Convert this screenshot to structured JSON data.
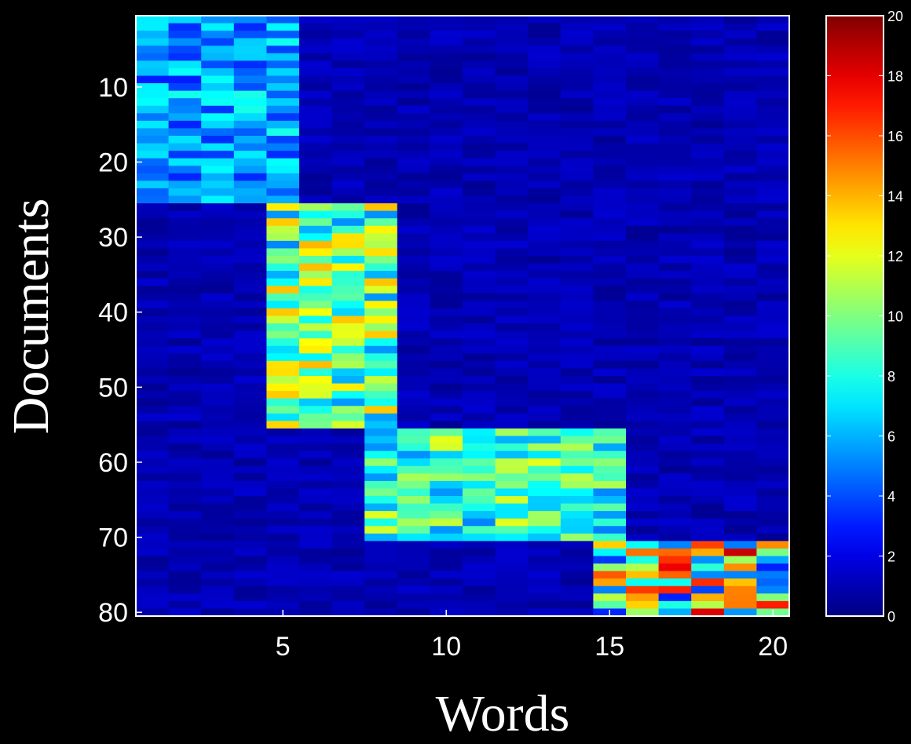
{
  "chart_data": {
    "type": "heatmap",
    "xlabel": "Words",
    "ylabel": "Documents",
    "x_range": [
      1,
      20
    ],
    "y_range": [
      1,
      80
    ],
    "x_ticks": [
      "5",
      "10",
      "15",
      "20"
    ],
    "y_ticks": [
      "10",
      "20",
      "30",
      "40",
      "50",
      "60",
      "70",
      "80"
    ],
    "colorbar": {
      "range": [
        0,
        20
      ],
      "ticks": [
        "0",
        "2",
        "4",
        "6",
        "8",
        "10",
        "12",
        "14",
        "16",
        "18",
        "20"
      ],
      "colormap": "jet"
    },
    "background_level": 1,
    "blocks": [
      {
        "documents": [
          1,
          25
        ],
        "words": [
          1,
          5
        ],
        "typical_value": 5,
        "range": [
          3,
          8
        ]
      },
      {
        "documents": [
          26,
          55
        ],
        "words": [
          5,
          8
        ],
        "typical_value": 9,
        "range": [
          5,
          14
        ]
      },
      {
        "documents": [
          56,
          70
        ],
        "words": [
          8,
          15
        ],
        "typical_value": 8,
        "range": [
          5,
          12
        ]
      },
      {
        "documents": [
          71,
          80
        ],
        "words": [
          15,
          20
        ],
        "typical_value": 10,
        "range": [
          3,
          19
        ]
      }
    ],
    "colors": {
      "background": "#000000",
      "text": "#ffffff",
      "axis": "#ffffff"
    }
  }
}
